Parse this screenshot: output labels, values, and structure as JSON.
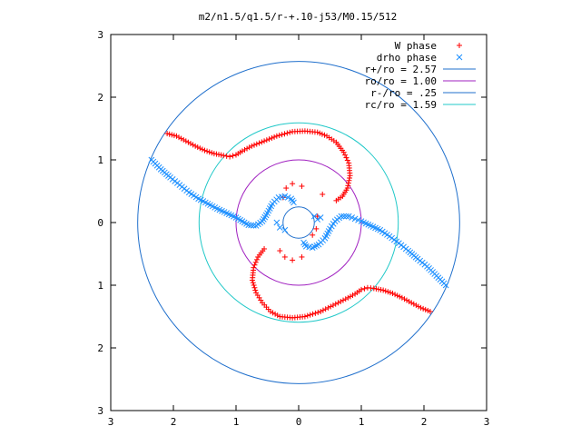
{
  "chart_data": {
    "type": "scatter",
    "title": "m2/n1.5/q1.5/r-+.10-j53/M0.15/512",
    "xlim": [
      -3,
      3
    ],
    "ylim": [
      -3,
      3
    ],
    "x_ticks": [
      "3",
      "2",
      "1",
      "0",
      "1",
      "2",
      "3"
    ],
    "y_ticks": [
      "3",
      "2",
      "1",
      "0",
      "1",
      "2",
      "3"
    ],
    "x_tick_values": [
      -3,
      -2,
      -1,
      0,
      1,
      2,
      3
    ],
    "y_tick_values": [
      3,
      2,
      1,
      0,
      -1,
      -2,
      -3
    ],
    "grid": false,
    "legend_position": "top-right",
    "series": [
      {
        "name": "W phase",
        "marker": "+",
        "color": "#ff0000",
        "arms": [
          [
            [
              -2.1,
              1.42
            ],
            [
              -1.95,
              1.38
            ],
            [
              -1.8,
              1.3
            ],
            [
              -1.65,
              1.22
            ],
            [
              -1.5,
              1.15
            ],
            [
              -1.35,
              1.1
            ],
            [
              -1.2,
              1.07
            ],
            [
              -1.1,
              1.05
            ],
            [
              -1.0,
              1.08
            ],
            [
              -0.9,
              1.14
            ],
            [
              -0.75,
              1.22
            ],
            [
              -0.55,
              1.3
            ],
            [
              -0.35,
              1.38
            ],
            [
              -0.1,
              1.45
            ],
            [
              0.1,
              1.46
            ],
            [
              0.3,
              1.44
            ],
            [
              0.45,
              1.38
            ],
            [
              0.6,
              1.28
            ],
            [
              0.72,
              1.12
            ],
            [
              0.8,
              0.95
            ],
            [
              0.82,
              0.75
            ],
            [
              0.78,
              0.55
            ],
            [
              0.7,
              0.42
            ],
            [
              0.6,
              0.35
            ]
          ],
          [
            [
              2.1,
              -1.42
            ],
            [
              1.95,
              -1.36
            ],
            [
              1.8,
              -1.28
            ],
            [
              1.65,
              -1.2
            ],
            [
              1.5,
              -1.13
            ],
            [
              1.35,
              -1.08
            ],
            [
              1.2,
              -1.05
            ],
            [
              1.1,
              -1.04
            ],
            [
              1.0,
              -1.07
            ],
            [
              0.9,
              -1.14
            ],
            [
              0.75,
              -1.22
            ],
            [
              0.55,
              -1.32
            ],
            [
              0.35,
              -1.42
            ],
            [
              0.1,
              -1.5
            ],
            [
              -0.1,
              -1.52
            ],
            [
              -0.3,
              -1.5
            ],
            [
              -0.45,
              -1.42
            ],
            [
              -0.58,
              -1.28
            ],
            [
              -0.68,
              -1.12
            ],
            [
              -0.74,
              -0.92
            ],
            [
              -0.72,
              -0.72
            ],
            [
              -0.65,
              -0.55
            ],
            [
              -0.55,
              -0.42
            ]
          ],
          [
            [
              -0.25,
              0.4
            ],
            [
              -0.2,
              0.55
            ],
            [
              -0.1,
              0.62
            ],
            [
              0.05,
              0.58
            ],
            [
              0.38,
              0.45
            ],
            [
              0.3,
              0.1
            ],
            [
              0.28,
              -0.1
            ],
            [
              0.22,
              -0.2
            ],
            [
              0.05,
              -0.55
            ],
            [
              -0.1,
              -0.6
            ],
            [
              -0.22,
              -0.55
            ],
            [
              -0.3,
              -0.45
            ]
          ]
        ]
      },
      {
        "name": "drho phase",
        "marker": "x",
        "color": "#1e90ff",
        "arms": [
          [
            [
              -2.35,
              1.0
            ],
            [
              -2.2,
              0.85
            ],
            [
              -2.05,
              0.72
            ],
            [
              -1.9,
              0.6
            ],
            [
              -1.75,
              0.48
            ],
            [
              -1.6,
              0.38
            ],
            [
              -1.45,
              0.3
            ],
            [
              -1.3,
              0.22
            ],
            [
              -1.15,
              0.15
            ],
            [
              -1.0,
              0.08
            ],
            [
              -0.9,
              0.02
            ],
            [
              -0.8,
              -0.04
            ],
            [
              -0.68,
              -0.05
            ],
            [
              -0.58,
              0.02
            ],
            [
              -0.5,
              0.15
            ],
            [
              -0.42,
              0.3
            ],
            [
              -0.32,
              0.4
            ],
            [
              -0.22,
              0.42
            ],
            [
              -0.12,
              0.38
            ],
            [
              -0.08,
              0.32
            ]
          ],
          [
            [
              2.35,
              -1.0
            ],
            [
              2.2,
              -0.85
            ],
            [
              2.05,
              -0.7
            ],
            [
              1.9,
              -0.58
            ],
            [
              1.75,
              -0.45
            ],
            [
              1.6,
              -0.33
            ],
            [
              1.45,
              -0.22
            ],
            [
              1.3,
              -0.12
            ],
            [
              1.15,
              -0.05
            ],
            [
              1.0,
              0.02
            ],
            [
              0.9,
              0.06
            ],
            [
              0.8,
              0.1
            ],
            [
              0.68,
              0.1
            ],
            [
              0.58,
              0.02
            ],
            [
              0.5,
              -0.1
            ],
            [
              0.42,
              -0.25
            ],
            [
              0.32,
              -0.35
            ],
            [
              0.22,
              -0.4
            ],
            [
              0.12,
              -0.38
            ],
            [
              0.08,
              -0.32
            ]
          ],
          [
            [
              -0.35,
              0.0
            ],
            [
              -0.3,
              -0.08
            ],
            [
              -0.22,
              -0.12
            ],
            [
              0.25,
              0.1
            ],
            [
              0.3,
              0.05
            ],
            [
              0.35,
              0.08
            ]
          ]
        ]
      }
    ],
    "circles": [
      {
        "name": "r+/ro = 2.57",
        "radius": 2.57,
        "color": "#1f6fcc"
      },
      {
        "name": "ro/ro = 1.00",
        "radius": 1.0,
        "color": "#a020c0"
      },
      {
        "name": "r-/ro = .25",
        "radius": 0.25,
        "color": "#1f6fcc"
      },
      {
        "name": "rc/ro = 1.59",
        "radius": 1.59,
        "color": "#20c8c8"
      }
    ]
  }
}
